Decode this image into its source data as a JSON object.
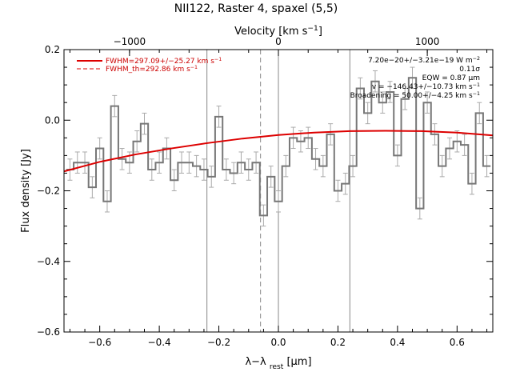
{
  "chart_data": {
    "type": "line",
    "title": "NII122, Raster 4, spaxel (5,5)",
    "xlabel": "λ−λ",
    "xlabel_sub": "rest",
    "xlabel_unit": "[μm]",
    "ylabel": "Flux density [Jy]",
    "top_axis_label": "Velocity [km s",
    "top_axis_label_sup": "−1",
    "top_axis_label_end": "]",
    "xlim": [
      -0.72,
      0.72
    ],
    "ylim": [
      -0.6,
      0.2
    ],
    "xticks": [
      -0.6,
      -0.4,
      -0.2,
      0.0,
      0.2,
      0.4,
      0.6
    ],
    "xtick_labels": [
      "−0.6",
      "−0.4",
      "−0.2",
      "0.0",
      "0.2",
      "0.4",
      "0.6"
    ],
    "yticks": [
      -0.6,
      -0.4,
      -0.2,
      0.0,
      0.2
    ],
    "ytick_labels": [
      "−0.6",
      "−0.4",
      "−0.2",
      "0.0",
      "0.2"
    ],
    "top_ticks_um": [
      -0.5,
      0.0,
      0.5
    ],
    "top_tick_labels": [
      "−1000",
      "0",
      "1000"
    ],
    "vlines_solid": [
      -0.24,
      0.0,
      0.24
    ],
    "vline_dashed": -0.06,
    "colors": {
      "data": "#777777",
      "error": "#aaaaaa",
      "fit": "#dd0000",
      "vline": "#888888"
    },
    "series": [
      {
        "name": "data",
        "x": [
          -0.7,
          -0.675,
          -0.65,
          -0.625,
          -0.6,
          -0.575,
          -0.55,
          -0.525,
          -0.5,
          -0.475,
          -0.45,
          -0.425,
          -0.4,
          -0.375,
          -0.35,
          -0.325,
          -0.3,
          -0.275,
          -0.25,
          -0.225,
          -0.2,
          -0.175,
          -0.15,
          -0.125,
          -0.1,
          -0.075,
          -0.05,
          -0.025,
          0.0,
          0.025,
          0.05,
          0.075,
          0.1,
          0.125,
          0.15,
          0.175,
          0.2,
          0.225,
          0.25,
          0.275,
          0.3,
          0.325,
          0.35,
          0.375,
          0.4,
          0.425,
          0.45,
          0.475,
          0.5,
          0.525,
          0.55,
          0.575,
          0.6,
          0.625,
          0.65,
          0.675,
          0.7
        ],
        "y": [
          -0.14,
          -0.12,
          -0.12,
          -0.19,
          -0.08,
          -0.23,
          0.04,
          -0.11,
          -0.12,
          -0.06,
          -0.01,
          -0.14,
          -0.12,
          -0.08,
          -0.17,
          -0.12,
          -0.12,
          -0.13,
          -0.14,
          -0.16,
          0.01,
          -0.14,
          -0.15,
          -0.12,
          -0.14,
          -0.12,
          -0.27,
          -0.16,
          -0.23,
          -0.13,
          -0.05,
          -0.06,
          -0.05,
          -0.11,
          -0.13,
          -0.04,
          -0.2,
          -0.18,
          -0.13,
          0.09,
          0.02,
          0.11,
          0.05,
          0.08,
          -0.1,
          0.06,
          0.12,
          -0.25,
          0.05,
          -0.04,
          -0.13,
          -0.08,
          -0.06,
          -0.07,
          -0.18,
          0.02,
          -0.13
        ]
      },
      {
        "name": "FWHM=297.09+/−25.27 km s",
        "x": [
          -0.72,
          -0.6,
          -0.48,
          -0.36,
          -0.24,
          -0.12,
          0.0,
          0.12,
          0.24,
          0.36,
          0.48,
          0.6,
          0.72
        ],
        "y": [
          -0.145,
          -0.118,
          -0.097,
          -0.08,
          -0.065,
          -0.052,
          -0.042,
          -0.035,
          -0.031,
          -0.03,
          -0.031,
          -0.035,
          -0.043
        ]
      }
    ],
    "error": 0.03,
    "legend": [
      {
        "label": "FWHM=297.09+/−25.27 km s",
        "sup": "−1",
        "style": "solid"
      },
      {
        "label": "FWHM_th=292.86 km s",
        "sup": "−1",
        "style": "dashed"
      }
    ],
    "annotations": [
      {
        "text": "7.20e−20+/−3.21e−19 W m",
        "sup": "−2"
      },
      {
        "text": "0.11σ",
        "sup": ""
      },
      {
        "text": "EQW = 0.87 μm",
        "sup": ""
      },
      {
        "text": "v = −146.43+/−10.73 km s",
        "sup": "−1"
      },
      {
        "text": "Broadening = 50.00+/−4.25 km s",
        "sup": "−1"
      }
    ]
  }
}
